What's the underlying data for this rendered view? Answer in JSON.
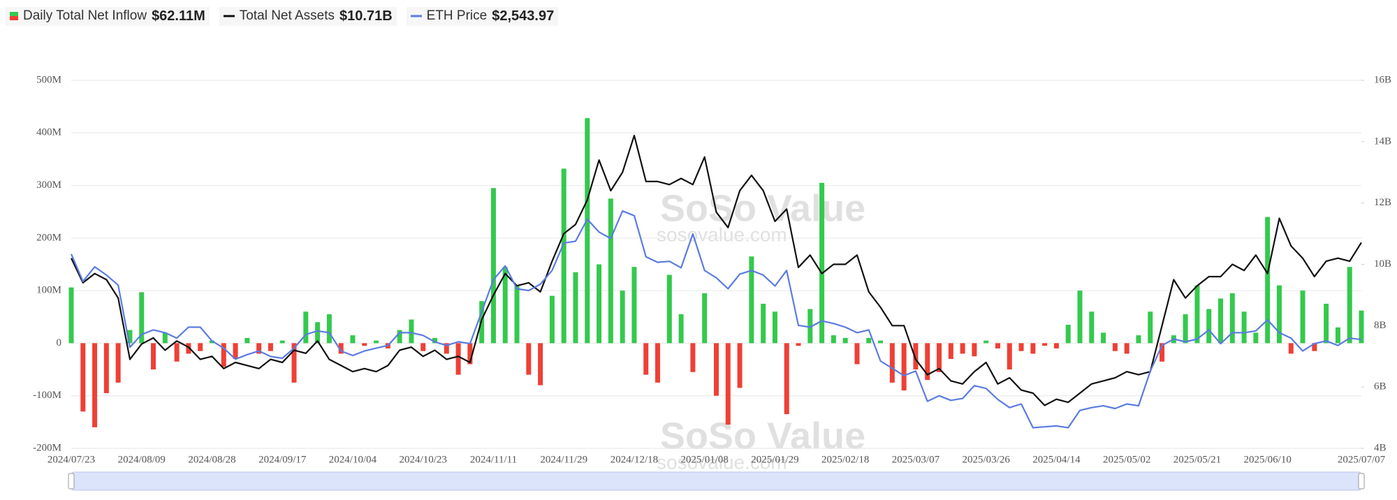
{
  "chart_data": {
    "type": "bar",
    "watermark": "SoSo Value",
    "watermark_url": "sosovalue.com",
    "categories": [
      "2024/07/23",
      null,
      null,
      null,
      null,
      null,
      "2024/08/09",
      null,
      null,
      null,
      null,
      null,
      "2024/08/28",
      null,
      null,
      null,
      null,
      null,
      "2024/09/17",
      null,
      null,
      null,
      null,
      null,
      "2024/10/04",
      null,
      null,
      null,
      null,
      null,
      "2024/10/23",
      null,
      null,
      null,
      null,
      null,
      "2024/11/11",
      null,
      null,
      null,
      null,
      null,
      "2024/11/29",
      null,
      null,
      null,
      null,
      null,
      "2024/12/18",
      null,
      null,
      null,
      null,
      null,
      "2025/01/08",
      null,
      null,
      null,
      null,
      null,
      "2025/01/29",
      null,
      null,
      null,
      null,
      null,
      "2025/02/18",
      null,
      null,
      null,
      null,
      null,
      "2025/03/07",
      null,
      null,
      null,
      null,
      null,
      "2025/03/26",
      null,
      null,
      null,
      null,
      null,
      "2025/04/14",
      null,
      null,
      null,
      null,
      null,
      "2025/05/02",
      null,
      null,
      null,
      null,
      null,
      "2025/05/21",
      null,
      null,
      null,
      null,
      null,
      "2025/06/10",
      null,
      null,
      null,
      null,
      null,
      null,
      null,
      "2025/07/07"
    ],
    "ylim": [
      -200,
      500
    ],
    "yticks": [
      {
        "value": -200,
        "label": "-200M"
      },
      {
        "value": -100,
        "label": "-100M"
      },
      0,
      {
        "value": 100,
        "label": "100M"
      },
      {
        "value": 200,
        "label": "200M"
      },
      {
        "value": 300,
        "label": "300M"
      },
      {
        "value": 400,
        "label": "400M"
      },
      {
        "value": 500,
        "label": "500M"
      }
    ],
    "y2lim": [
      4,
      16
    ],
    "y2ticks": [
      {
        "value": 4,
        "label": "4B"
      },
      {
        "value": 6,
        "label": "6B"
      },
      {
        "value": 8,
        "label": "8B"
      },
      {
        "value": 10,
        "label": "10B"
      },
      {
        "value": 12,
        "label": "12B"
      },
      {
        "value": 14,
        "label": "14B"
      },
      {
        "value": 16,
        "label": "16B"
      }
    ],
    "y3lim": [
      1355,
      5380
    ],
    "grid": true,
    "series": [
      {
        "name": "Daily Total Net Inflow",
        "type": "bar",
        "legend_value": "$62.11M",
        "color": "#34c94d",
        "negative_color": "#ee4035",
        "values": [
          106,
          -130,
          -160,
          -95,
          -75,
          25,
          97,
          -50,
          20,
          -35,
          -20,
          -15,
          5,
          -45,
          -30,
          10,
          -20,
          -15,
          5,
          -75,
          60,
          40,
          55,
          -20,
          15,
          -5,
          5,
          -10,
          25,
          45,
          -15,
          10,
          -20,
          -60,
          -40,
          80,
          295,
          145,
          110,
          -60,
          -80,
          90,
          332,
          135,
          428,
          150,
          275,
          100,
          145,
          -60,
          -75,
          130,
          55,
          -55,
          95,
          -100,
          -155,
          -85,
          165,
          75,
          60,
          -135,
          -5,
          65,
          305,
          15,
          10,
          -40,
          10,
          5,
          -75,
          -90,
          -50,
          -70,
          -55,
          -30,
          -20,
          -25,
          5,
          -10,
          -50,
          -15,
          -20,
          -5,
          -10,
          35,
          100,
          60,
          20,
          -15,
          -20,
          15,
          60,
          -35,
          15,
          55,
          110,
          65,
          85,
          95,
          60,
          20,
          240,
          110,
          -20,
          100,
          -15,
          75,
          30,
          145,
          62.11
        ]
      },
      {
        "name": "Total Net Assets",
        "type": "line",
        "axis": "y2",
        "legend_value": "$10.71B",
        "color": "#111111",
        "values": [
          10.2,
          9.4,
          9.7,
          9.5,
          8.9,
          6.9,
          7.4,
          7.6,
          7.2,
          7.5,
          7.3,
          6.9,
          7.0,
          6.6,
          6.8,
          6.7,
          6.6,
          6.9,
          6.8,
          7.2,
          7.1,
          7.5,
          6.9,
          6.7,
          6.5,
          6.6,
          6.5,
          6.7,
          7.2,
          7.3,
          7.0,
          7.2,
          6.9,
          7.0,
          6.8,
          8.2,
          9.0,
          9.7,
          9.3,
          9.4,
          9.1,
          10.1,
          11.0,
          11.3,
          12.1,
          13.4,
          12.4,
          13.0,
          14.2,
          12.7,
          12.7,
          12.6,
          12.8,
          12.6,
          13.5,
          11.7,
          11.2,
          12.4,
          12.9,
          12.4,
          11.4,
          11.8,
          9.9,
          10.3,
          9.7,
          10.0,
          10.0,
          10.3,
          9.1,
          8.6,
          8.0,
          8.0,
          6.9,
          6.4,
          6.6,
          6.2,
          6.1,
          6.5,
          6.8,
          6.1,
          6.3,
          5.9,
          5.8,
          5.4,
          5.6,
          5.5,
          5.8,
          6.1,
          6.2,
          6.3,
          6.5,
          6.4,
          6.5,
          8.0,
          9.5,
          8.9,
          9.3,
          9.6,
          9.6,
          10.0,
          9.8,
          10.3,
          9.7,
          11.5,
          10.6,
          10.2,
          9.6,
          10.1,
          10.2,
          10.1,
          10.71
        ]
      },
      {
        "name": "ETH Price",
        "type": "line",
        "axis": "y3",
        "legend_value": "$2,543.97",
        "color": "#5b7be0",
        "values": [
          3480,
          3180,
          3340,
          3250,
          3140,
          2460,
          2600,
          2650,
          2620,
          2560,
          2680,
          2680,
          2530,
          2450,
          2330,
          2380,
          2420,
          2360,
          2340,
          2450,
          2600,
          2640,
          2620,
          2420,
          2370,
          2420,
          2450,
          2480,
          2620,
          2620,
          2590,
          2520,
          2480,
          2520,
          2500,
          2850,
          3200,
          3350,
          3100,
          3080,
          3150,
          3300,
          3600,
          3620,
          3860,
          3720,
          3650,
          3950,
          3900,
          3450,
          3390,
          3400,
          3330,
          3700,
          3300,
          3220,
          3100,
          3260,
          3300,
          3250,
          3130,
          3300,
          2700,
          2680,
          2750,
          2720,
          2680,
          2620,
          2650,
          2310,
          2230,
          2150,
          2200,
          1870,
          1930,
          1880,
          1900,
          2040,
          2010,
          1890,
          1800,
          1840,
          1580,
          1590,
          1600,
          1580,
          1770,
          1800,
          1820,
          1790,
          1840,
          1820,
          2200,
          2480,
          2550,
          2520,
          2550,
          2650,
          2500,
          2620,
          2620,
          2640,
          2760,
          2620,
          2560,
          2420,
          2500,
          2530,
          2480,
          2560,
          2543.97
        ]
      }
    ]
  }
}
